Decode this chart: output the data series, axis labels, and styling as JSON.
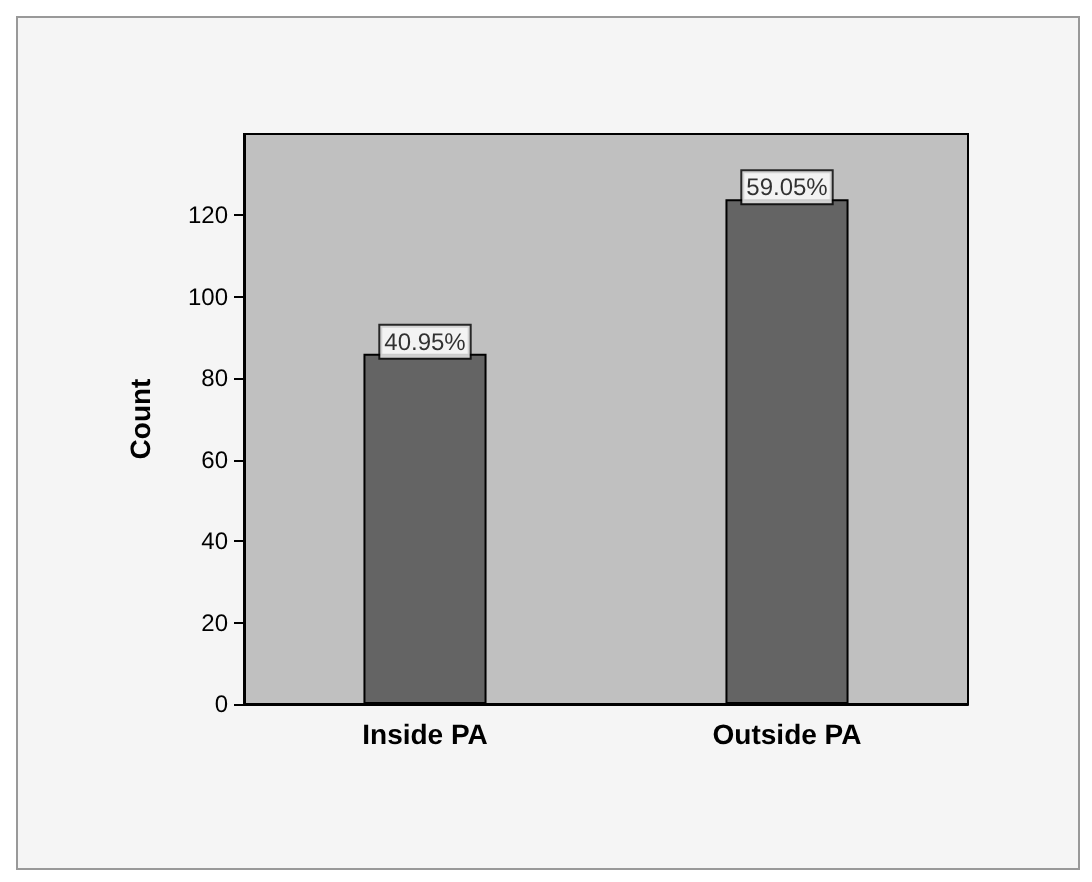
{
  "chart_data": {
    "type": "bar",
    "ylabel": "Count",
    "categories": [
      "Inside PA",
      "Outside PA"
    ],
    "values": [
      86,
      124
    ],
    "annotations": [
      {
        "text": "40.95%",
        "x": "Inside PA",
        "y": 86
      },
      {
        "text": "59.05%",
        "x": "Outside PA",
        "y": 124
      }
    ],
    "color": "#646464",
    "ylim": [
      0,
      140
    ],
    "yticks": [
      0,
      20,
      40,
      60,
      80,
      100,
      120
    ],
    "grid": false
  }
}
